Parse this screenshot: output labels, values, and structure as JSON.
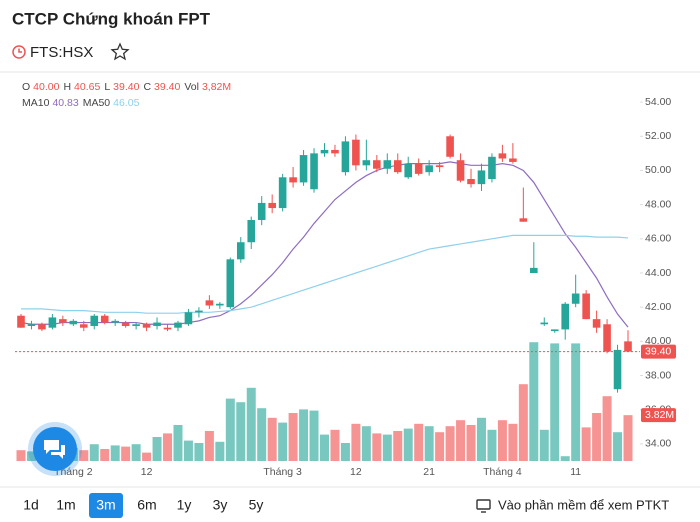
{
  "header": {
    "title": "CTCP Chứng khoán FPT",
    "ticker": "FTS:HSX"
  },
  "chart_data": {
    "type": "candlestick",
    "categories": [
      null,
      null,
      null,
      null,
      null,
      "Tháng 2",
      null,
      null,
      null,
      null,
      null,
      null,
      "12",
      null,
      null,
      null,
      null,
      null,
      null,
      null,
      null,
      null,
      null,
      null,
      null,
      "Tháng 3",
      null,
      null,
      null,
      null,
      null,
      null,
      "12",
      null,
      null,
      null,
      null,
      null,
      null,
      "21",
      null,
      null,
      null,
      null,
      null,
      null,
      "Tháng 4",
      null,
      null,
      null,
      null,
      null,
      null,
      "11",
      null,
      null,
      null,
      null,
      null
    ],
    "open": [
      41.5,
      40.9,
      41.0,
      40.8,
      41.3,
      41.0,
      41.0,
      40.9,
      41.5,
      41.1,
      41.1,
      40.9,
      41.0,
      40.9,
      40.8,
      40.8,
      41.0,
      41.7,
      42.4,
      42.1,
      42.0,
      44.8,
      45.8,
      47.1,
      48.1,
      47.8,
      49.6,
      49.3,
      48.9,
      51.0,
      51.2,
      49.9,
      51.8,
      50.3,
      50.6,
      50.1,
      50.6,
      49.6,
      50.4,
      49.9,
      50.3,
      52.0,
      50.6,
      49.5,
      49.2,
      49.5,
      51.0,
      50.7,
      47.2,
      44.0,
      41.0,
      40.6,
      40.7,
      42.2,
      42.8,
      41.3,
      41.0,
      37.2,
      40.0
    ],
    "high": [
      41.6,
      41.2,
      41.1,
      41.6,
      41.5,
      41.3,
      41.2,
      41.6,
      41.6,
      41.3,
      41.2,
      41.1,
      41.1,
      41.4,
      41.0,
      41.2,
      41.9,
      42.0,
      42.7,
      42.3,
      44.9,
      46.1,
      47.3,
      48.5,
      48.6,
      49.8,
      50.2,
      51.2,
      51.3,
      51.6,
      51.5,
      52.0,
      52.1,
      51.8,
      50.9,
      51.0,
      51.0,
      50.8,
      50.7,
      50.6,
      50.5,
      52.1,
      51.0,
      50.1,
      50.4,
      51.0,
      51.5,
      51.6,
      49.0,
      45.8,
      41.4,
      40.7,
      42.3,
      43.9,
      43.0,
      41.8,
      41.3,
      39.8,
      40.65
    ],
    "low": [
      40.8,
      40.7,
      40.6,
      40.7,
      40.9,
      40.9,
      40.6,
      40.7,
      41.0,
      40.9,
      40.8,
      40.7,
      40.6,
      40.7,
      40.6,
      40.6,
      40.9,
      41.4,
      41.9,
      41.9,
      41.9,
      44.6,
      45.4,
      46.8,
      47.5,
      47.6,
      49.0,
      49.1,
      48.7,
      50.8,
      50.8,
      49.7,
      50.0,
      50.0,
      49.9,
      49.8,
      49.8,
      49.5,
      49.7,
      49.7,
      49.9,
      50.7,
      49.3,
      49.0,
      48.8,
      49.3,
      50.5,
      50.4,
      47.0,
      44.0,
      40.9,
      40.5,
      40.1,
      42.0,
      41.3,
      40.5,
      39.3,
      37.0,
      39.4
    ],
    "close": [
      40.8,
      41.0,
      40.7,
      41.4,
      41.1,
      41.2,
      40.8,
      41.5,
      41.1,
      41.2,
      40.9,
      41.0,
      40.8,
      41.1,
      40.7,
      41.1,
      41.7,
      41.8,
      42.1,
      42.2,
      44.8,
      45.8,
      47.1,
      48.1,
      47.8,
      49.6,
      49.3,
      50.9,
      51.0,
      51.2,
      51.0,
      51.7,
      50.3,
      50.6,
      50.1,
      50.6,
      49.9,
      50.4,
      49.8,
      50.3,
      50.2,
      50.8,
      49.4,
      49.2,
      50.0,
      50.8,
      50.7,
      50.5,
      47.0,
      44.3,
      41.1,
      40.7,
      42.2,
      42.8,
      41.3,
      40.8,
      39.4,
      39.5,
      39.4
    ],
    "volume": [
      0.9,
      0.8,
      0.8,
      1.2,
      1.0,
      1.1,
      0.9,
      1.4,
      1.0,
      1.3,
      1.2,
      1.4,
      0.7,
      2.0,
      2.3,
      3.0,
      1.7,
      1.5,
      2.5,
      1.6,
      5.2,
      4.9,
      6.1,
      4.4,
      3.6,
      3.2,
      4.0,
      4.3,
      4.2,
      2.2,
      2.6,
      1.5,
      3.1,
      2.9,
      2.3,
      2.2,
      2.5,
      2.7,
      3.1,
      2.9,
      2.4,
      2.9,
      3.4,
      3.0,
      3.6,
      2.6,
      3.4,
      3.1,
      6.4,
      9.9,
      2.6,
      9.8,
      0.4,
      9.8,
      2.8,
      4.0,
      5.4,
      2.4,
      3.82
    ],
    "up_color": "#26a69a",
    "down_color": "#ef5350",
    "series": [
      {
        "name": "MA10",
        "color": "#8e6cc0",
        "value_label": "40.83",
        "values": [
          41.1,
          41.0,
          41.0,
          41.0,
          41.1,
          41.1,
          41.1,
          41.1,
          41.1,
          41.1,
          41.1,
          41.1,
          41.0,
          41.0,
          41.0,
          41.0,
          41.1,
          41.2,
          41.4,
          41.5,
          41.8,
          42.2,
          42.7,
          43.3,
          43.9,
          44.6,
          45.4,
          46.1,
          46.9,
          47.6,
          48.3,
          48.8,
          49.3,
          49.7,
          50.0,
          50.2,
          50.3,
          50.4,
          50.4,
          50.4,
          50.4,
          50.5,
          50.4,
          50.3,
          50.3,
          50.3,
          50.4,
          50.3,
          50.0,
          49.3,
          48.3,
          47.3,
          46.3,
          45.5,
          44.6,
          43.7,
          42.6,
          41.6,
          40.83
        ]
      },
      {
        "name": "MA50",
        "color": "#8fd0ec",
        "value_label": "46.05",
        "values": [
          41.9,
          41.9,
          41.9,
          41.85,
          41.8,
          41.8,
          41.8,
          41.75,
          41.7,
          41.7,
          41.7,
          41.7,
          41.65,
          41.65,
          41.65,
          41.65,
          41.7,
          41.7,
          41.7,
          41.75,
          41.8,
          41.9,
          42.0,
          42.2,
          42.4,
          42.6,
          42.8,
          43.0,
          43.2,
          43.4,
          43.6,
          43.8,
          44.0,
          44.2,
          44.4,
          44.6,
          44.8,
          45.0,
          45.2,
          45.4,
          45.5,
          45.6,
          45.7,
          45.8,
          45.9,
          46.0,
          46.1,
          46.2,
          46.2,
          46.2,
          46.2,
          46.2,
          46.2,
          46.15,
          46.15,
          46.1,
          46.1,
          46.1,
          46.05
        ]
      }
    ],
    "ylim": [
      33,
      55
    ],
    "yticks": [
      {
        "value": 34,
        "label": "34.00"
      },
      {
        "value": 36,
        "label": "36.00"
      },
      {
        "value": 38,
        "label": "38.00"
      },
      {
        "value": 40,
        "label": "40.00"
      },
      {
        "value": 42,
        "label": "42.00"
      },
      {
        "value": 44,
        "label": "44.00"
      },
      {
        "value": 46,
        "label": "46.00"
      },
      {
        "value": 48,
        "label": "48.00"
      },
      {
        "value": 50,
        "label": "50.00"
      },
      {
        "value": 52,
        "label": "52.00"
      },
      {
        "value": 54,
        "label": "54.00"
      }
    ],
    "volume_lim": [
      0,
      10
    ],
    "last_price": {
      "value": 39.4,
      "label": "39.40"
    },
    "last_volume": {
      "value": 3.82,
      "label": "3.82M"
    },
    "legend": [
      {
        "key": "O",
        "text": "40.00"
      },
      {
        "key": "H",
        "text": "40.65"
      },
      {
        "key": "L",
        "text": "39.40"
      },
      {
        "key": "C",
        "text": "39.40"
      },
      {
        "key": "Vol",
        "text": "3,82M"
      }
    ]
  },
  "footer": {
    "ranges": [
      "1d",
      "1m",
      "3m",
      "6m",
      "1y",
      "3y",
      "5y"
    ],
    "active": "3m",
    "link": "Vào phần mềm để xem PTKT"
  }
}
